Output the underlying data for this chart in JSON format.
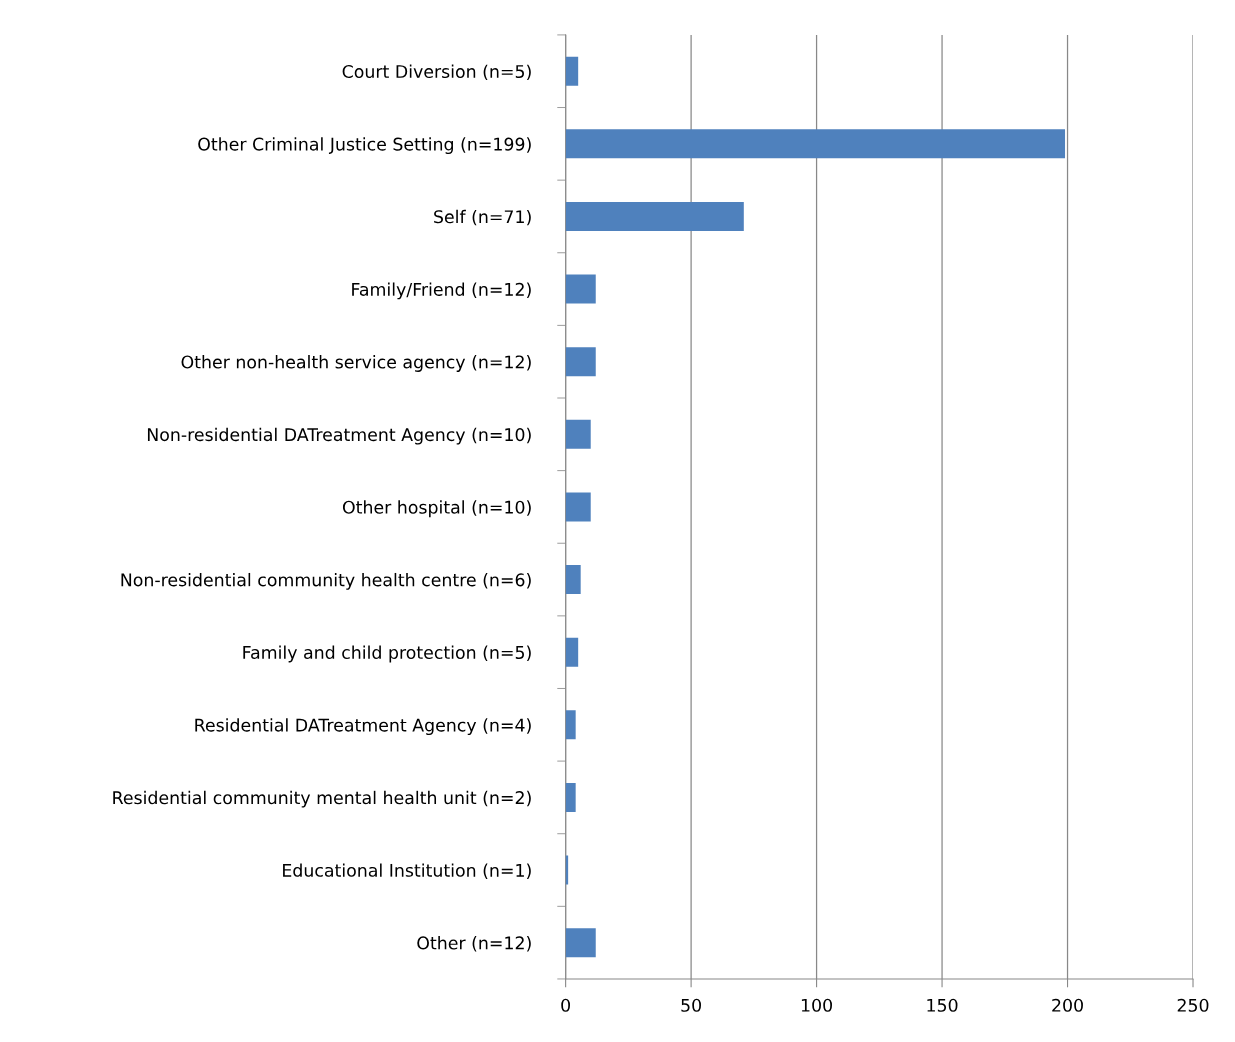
{
  "chart_data": {
    "type": "bar",
    "orientation": "horizontal",
    "categories": [
      "Court Diversion (n=5)",
      "Other Criminal Justice Setting (n=199)",
      "Self (n=71)",
      "Family/Friend (n=12)",
      "Other non-health service agency (n=12)",
      "Non-residential DATreatment Agency (n=10)",
      "Other hospital (n=10)",
      "Non-residential community health centre (n=6)",
      "Family and child protection (n=5)",
      "Residential DATreatment Agency (n=4)",
      "Residential community mental health unit (n=2)",
      "Educational Institution (n=1)",
      "Other (n=12)"
    ],
    "values": [
      5,
      199,
      71,
      12,
      12,
      10,
      10,
      6,
      5,
      4,
      4,
      1,
      12
    ],
    "color": "#4f81bd",
    "xlim": [
      0,
      250
    ],
    "xticks": [
      0,
      50,
      100,
      150,
      200,
      250
    ],
    "grid": "x",
    "legend": false
  }
}
